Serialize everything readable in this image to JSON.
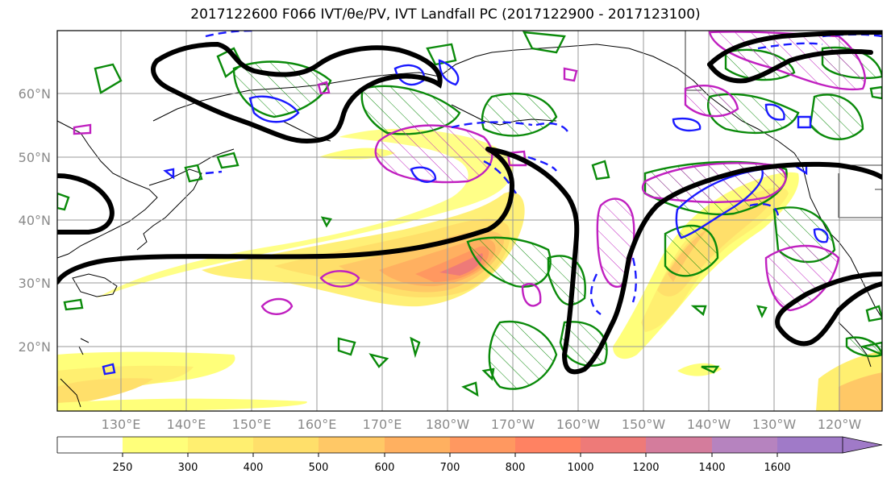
{
  "title": "2017122600 F066 IVT/θe/PV, IVT Landfall PC (2017122900 - 2017123100)",
  "map": {
    "lat_labels": [
      "60°N",
      "50°N",
      "40°N",
      "30°N",
      "20°N"
    ],
    "lon_labels": [
      "130°E",
      "140°E",
      "150°E",
      "160°E",
      "170°E",
      "180°W",
      "170°W",
      "160°W",
      "150°W",
      "140°W",
      "130°W",
      "120°W"
    ],
    "colors": {
      "coast": "#000000",
      "pc_contour": "#000000",
      "theta_e": "#0a8a0a",
      "pv_neg": "#1a1aff",
      "pv_pos": "#c020c0",
      "grid": "#9a9a9a"
    }
  },
  "colorbar": {
    "levels": [
      "250",
      "300",
      "400",
      "500",
      "600",
      "700",
      "800",
      "1000",
      "1200",
      "1400",
      "1600"
    ],
    "colors": [
      "#ffffff",
      "#ffff7a",
      "#ffef70",
      "#ffdf6a",
      "#ffc866",
      "#ffb060",
      "#ff9860",
      "#ff8262",
      "#ee7a78",
      "#d47c9c",
      "#b683bf",
      "#a07ac8"
    ]
  }
}
